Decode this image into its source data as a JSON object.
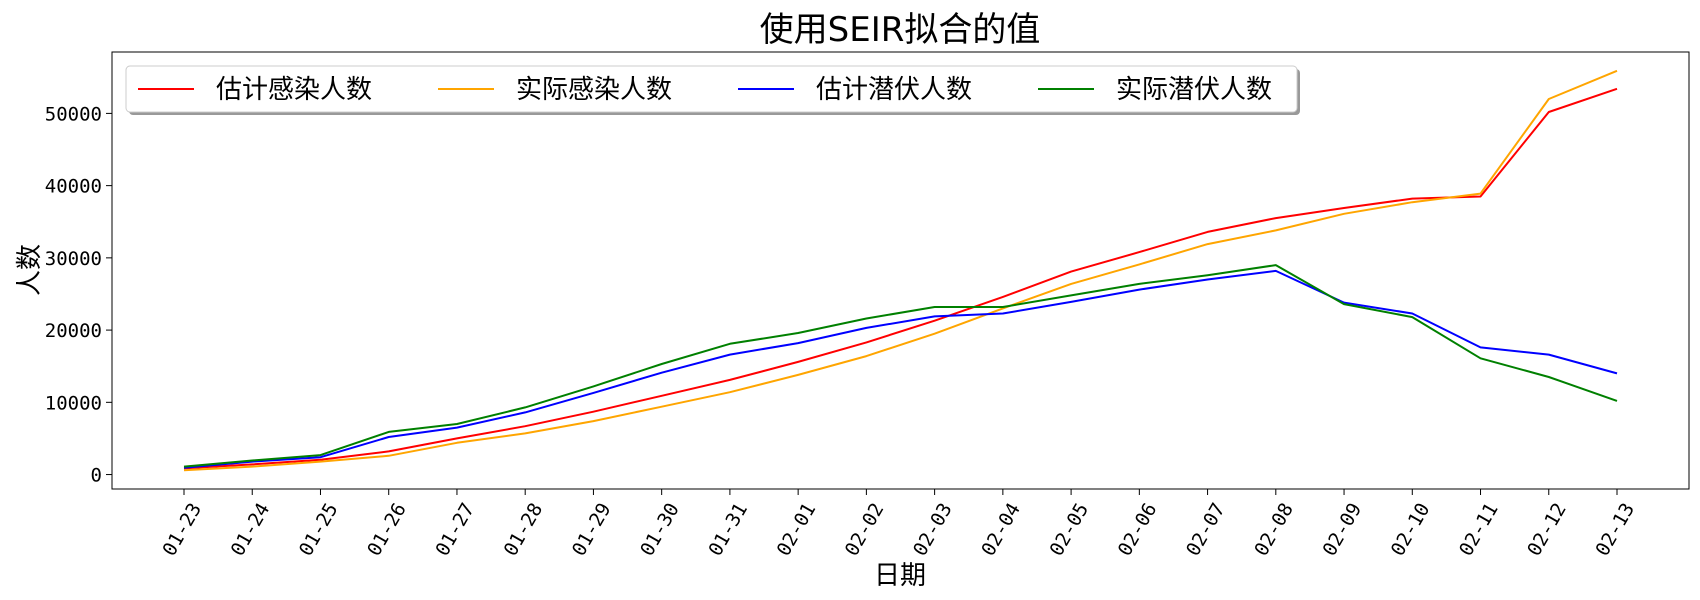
{
  "chart_data": {
    "type": "line",
    "title": "使用SEIR拟合的值",
    "xlabel": "日期",
    "ylabel": "人数",
    "x": [
      "01-23",
      "01-24",
      "01-25",
      "01-26",
      "01-27",
      "01-28",
      "01-29",
      "01-30",
      "01-31",
      "02-01",
      "02-02",
      "02-03",
      "02-04",
      "02-05",
      "02-06",
      "02-07",
      "02-08",
      "02-09",
      "02-10",
      "02-11",
      "02-12",
      "02-13"
    ],
    "ylim": [
      -2000,
      58500
    ],
    "yticks": [
      0,
      10000,
      20000,
      30000,
      40000,
      50000
    ],
    "grid": false,
    "legend_position": "top-left",
    "series": [
      {
        "name": "估计感染人数",
        "color": "#ff0000",
        "values": [
          850,
          1400,
          2050,
          3200,
          5000,
          6700,
          8700,
          10900,
          13100,
          15600,
          18300,
          21300,
          24600,
          28100,
          30800,
          33600,
          35500,
          36900,
          38200,
          38500,
          50200,
          53400
        ]
      },
      {
        "name": "实际感染人数",
        "color": "#ffa500",
        "values": [
          600,
          1100,
          1800,
          2600,
          4400,
          5700,
          7400,
          9400,
          11400,
          13800,
          16400,
          19500,
          23000,
          26400,
          29100,
          31900,
          33800,
          36100,
          37700,
          38900,
          52000,
          55900
        ]
      },
      {
        "name": "估计潜伏人数",
        "color": "#0000ff",
        "values": [
          950,
          1800,
          2400,
          5200,
          6500,
          8600,
          11300,
          14100,
          16600,
          18200,
          20300,
          21900,
          22300,
          23900,
          25600,
          27000,
          28200,
          23800,
          22300,
          17600,
          16600,
          14000
        ]
      },
      {
        "name": "实际潜伏人数",
        "color": "#008000",
        "values": [
          1100,
          1950,
          2700,
          5900,
          7000,
          9300,
          12200,
          15300,
          18100,
          19600,
          21600,
          23200,
          23200,
          24800,
          26400,
          27600,
          29000,
          23600,
          21800,
          16100,
          13500,
          10200
        ]
      }
    ]
  }
}
